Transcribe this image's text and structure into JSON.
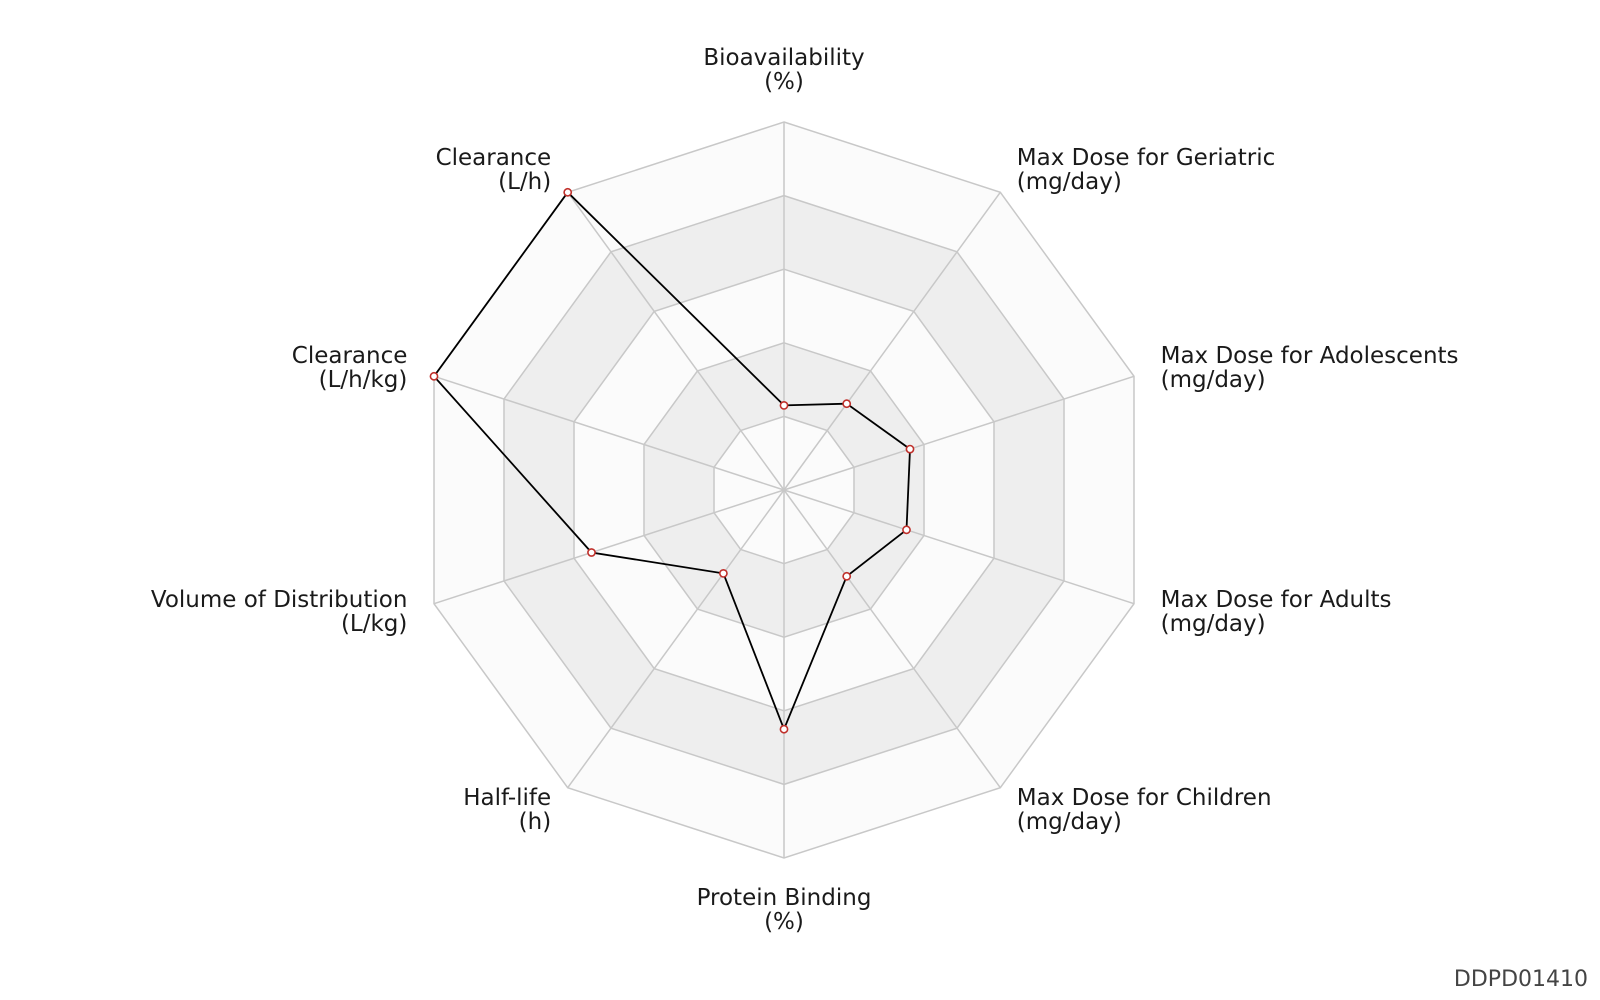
{
  "chart_data": {
    "type": "radar",
    "axes": [
      {
        "name": "Bioavailability",
        "unit": "(%)"
      },
      {
        "name": "Max Dose for Geriatric",
        "unit": "(mg/day)"
      },
      {
        "name": "Max Dose for Adolescents",
        "unit": "(mg/day)"
      },
      {
        "name": "Max Dose for Adults",
        "unit": "(mg/day)"
      },
      {
        "name": "Max Dose for Children",
        "unit": "(mg/day)"
      },
      {
        "name": "Protein Binding",
        "unit": "(%)"
      },
      {
        "name": "Half-life",
        "unit": "(h)"
      },
      {
        "name": "Volume of Distribution",
        "unit": "(L/kg)"
      },
      {
        "name": "Clearance",
        "unit": "(L/h/kg)"
      },
      {
        "name": "Clearance",
        "unit": "(L/h)"
      }
    ],
    "scale": {
      "min": 0,
      "max": 1,
      "rings": 5,
      "ticks_shown": false
    },
    "series": [
      {
        "values": [
          0.23,
          0.29,
          0.36,
          0.35,
          0.29,
          0.65,
          0.28,
          0.55,
          1.0,
          1.0
        ]
      }
    ],
    "colors": {
      "line": "#000000",
      "marker_edge": "#c0302b",
      "marker_face": "#ffffff",
      "grid": "#c8c8c8",
      "band_light": "#fbfbfb",
      "band_dark": "#eeeeee"
    },
    "grid": true,
    "legend": "none"
  },
  "watermark": "DDPD01410"
}
